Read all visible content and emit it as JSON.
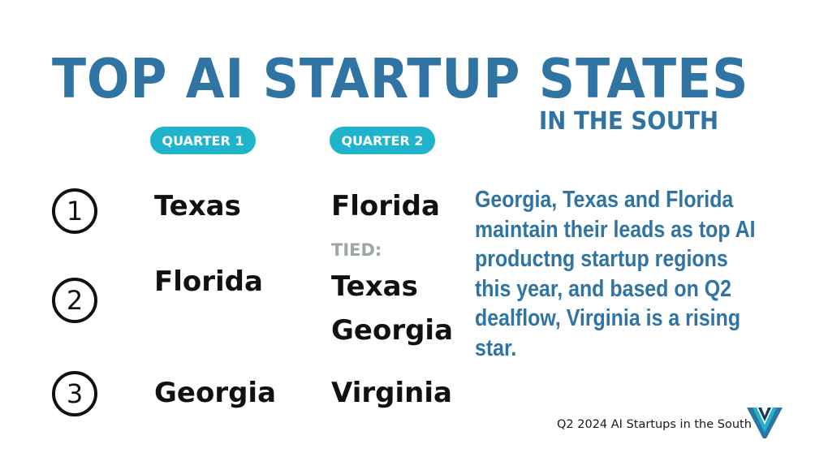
{
  "title": "TOP AI STARTUP STATES",
  "subtitle": "IN THE SOUTH",
  "columns": {
    "q1": "QUARTER 1",
    "q2": "QUARTER 2"
  },
  "ranks": [
    "1",
    "2",
    "3"
  ],
  "quarter1": {
    "first": "Texas",
    "second": "Florida",
    "third": "Georgia"
  },
  "quarter2": {
    "first": "Florida",
    "tied_label": "TIED:",
    "second_a": "Texas",
    "second_b": "Georgia",
    "third": "Virginia"
  },
  "summary": "Georgia, Texas and Florida maintain their leads as top AI productng startup regions this year, and based on Q2 dealflow, Virginia is a rising star.",
  "footer": "Q2 2024 AI Startups in the South",
  "colors": {
    "title_blue": "#2f74a3",
    "pill_teal": "#20b3cc",
    "tied_gray": "#9aa6a8"
  }
}
